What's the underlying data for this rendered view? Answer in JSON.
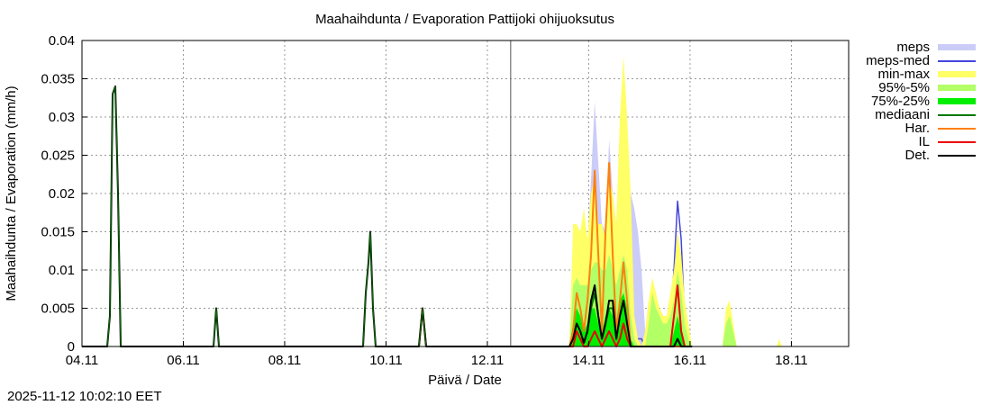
{
  "timestamp": "2025-11-12 10:02:10 EET",
  "chart_data": {
    "type": "area",
    "title": "Maahaihdunta / Evaporation  Pattijoki ohijuoksutus",
    "xlabel": "Päivä / Date",
    "ylabel": "Maahaihdunta / Evaporation (mm/h)",
    "x_unit": "days since 04.11 00:00",
    "xlim": [
      0,
      15.13
    ],
    "ylim": [
      0,
      0.04
    ],
    "grid": true,
    "legend_position": "outside-right",
    "now_marker_x": 8.46,
    "x_ticks": [
      {
        "x": 0,
        "label": "04.11"
      },
      {
        "x": 2,
        "label": "06.11"
      },
      {
        "x": 4,
        "label": "08.11"
      },
      {
        "x": 6,
        "label": "10.11"
      },
      {
        "x": 8,
        "label": "12.11"
      },
      {
        "x": 10,
        "label": "14.11"
      },
      {
        "x": 12,
        "label": "16.11"
      },
      {
        "x": 14,
        "label": "18.11"
      }
    ],
    "y_ticks": [
      {
        "y": 0,
        "label": "0"
      },
      {
        "y": 0.005,
        "label": "0.005"
      },
      {
        "y": 0.01,
        "label": "0.01"
      },
      {
        "y": 0.015,
        "label": "0.015"
      },
      {
        "y": 0.02,
        "label": "0.02"
      },
      {
        "y": 0.025,
        "label": "0.025"
      },
      {
        "y": 0.03,
        "label": "0.03"
      },
      {
        "y": 0.035,
        "label": "0.035"
      },
      {
        "y": 0.04,
        "label": "0.04"
      }
    ],
    "legend": [
      {
        "key": "meps",
        "label": "meps",
        "color": "#ccccf8",
        "kind": "fill"
      },
      {
        "key": "meps_med",
        "label": "meps-med",
        "color": "#4444dd",
        "kind": "line"
      },
      {
        "key": "minmax",
        "label": "min-max",
        "color": "#ffff66",
        "kind": "fill"
      },
      {
        "key": "p95_5",
        "label": "95%-5%",
        "color": "#b3ff66",
        "kind": "fill"
      },
      {
        "key": "p75_25",
        "label": "75%-25%",
        "color": "#00ee00",
        "kind": "fill"
      },
      {
        "key": "mediaani",
        "label": "mediaani",
        "color": "#007700",
        "kind": "line"
      },
      {
        "key": "har",
        "label": "Har.",
        "color": "#ff7f0e",
        "kind": "line"
      },
      {
        "key": "il",
        "label": "IL",
        "color": "#ee0000",
        "kind": "line"
      },
      {
        "key": "det",
        "label": "Det.",
        "color": "#000000",
        "kind": "line"
      }
    ],
    "history": {
      "det": [
        [
          0,
          0
        ],
        [
          0.498,
          0
        ],
        [
          0.551,
          0.004
        ],
        [
          0.604,
          0.033
        ],
        [
          0.658,
          0.034
        ],
        [
          0.711,
          0.02
        ],
        [
          0.764,
          0
        ],
        [
          2.595,
          0
        ],
        [
          2.649,
          0.005
        ],
        [
          2.702,
          0
        ],
        [
          5.547,
          0
        ],
        [
          5.6,
          0.007
        ],
        [
          5.653,
          0.011
        ],
        [
          5.689,
          0.015
        ],
        [
          5.742,
          0.005
        ],
        [
          5.796,
          0
        ],
        [
          6.649,
          0
        ],
        [
          6.72,
          0.005
        ],
        [
          6.791,
          0
        ],
        [
          9.62,
          0
        ]
      ],
      "il": [
        [
          6.649,
          0
        ],
        [
          6.72,
          0.005
        ],
        [
          6.791,
          0
        ]
      ]
    },
    "forecast": {
      "x0": 9.62,
      "dx": 0.0711,
      "meps": [
        0,
        0.015,
        0.013,
        0.012,
        0.018,
        0.013,
        0.022,
        0.032,
        0.024,
        0.016,
        0.015,
        0.027,
        0.02,
        0.016,
        0.027,
        0.034,
        0.025,
        0.02,
        0.018,
        0.015,
        0.01,
        0.002,
        0.006,
        0.007,
        0.005,
        0.005,
        0.004,
        0.003,
        0.006,
        0.008,
        0.012,
        0.01,
        0.004,
        0.001,
        0
      ],
      "minmax": [
        0,
        0.016,
        0.016,
        0.015,
        0.018,
        0.014,
        0.02,
        0.022,
        0.016,
        0.016,
        0.014,
        0.022,
        0.02,
        0.016,
        0.03,
        0.038,
        0.03,
        0.02,
        0.004,
        0.001,
        0,
        0.002,
        0.006,
        0.009,
        0.007,
        0.005,
        0.004,
        0.004,
        0.007,
        0.01,
        0.015,
        0.012,
        0.006,
        0.003,
        0
      ],
      "p95_5": [
        0,
        0.008,
        0.009,
        0.008,
        0.008,
        0.008,
        0.01,
        0.011,
        0.011,
        0.01,
        0.01,
        0.012,
        0.01,
        0.008,
        0.01,
        0.012,
        0.01,
        0.004,
        0.001,
        0,
        0,
        0,
        0.003,
        0.007,
        0.005,
        0.004,
        0.003,
        0.003,
        0.004,
        0.006,
        0.01,
        0.007,
        0.003,
        0.001,
        0
      ],
      "p75_25": [
        0,
        0.003,
        0.005,
        0.004,
        0.002,
        0.003,
        0.005,
        0.005,
        0.003,
        0.002,
        0.004,
        0.005,
        0.004,
        0.003,
        0.006,
        0.007,
        0.005,
        0.001,
        0,
        0,
        0,
        0,
        0,
        0,
        0,
        0,
        0,
        0,
        0,
        0.002,
        0.004,
        0.002,
        0,
        0,
        0
      ],
      "meps_med": [
        0,
        0.002,
        0.003,
        0.002,
        0.001,
        0.002,
        0.005,
        0.007,
        0.004,
        0.001,
        0.003,
        0.005,
        0.005,
        0.002,
        0.004,
        0.006,
        0.004,
        0.002,
        0.001,
        0.001,
        0.001,
        0,
        0.001,
        0.002,
        0.001,
        0.001,
        0.001,
        0.001,
        0.003,
        0.01,
        0.019,
        0.014,
        0.003,
        0,
        0
      ],
      "mediaani": [
        0,
        0.001,
        0.003,
        0.002,
        0.0005,
        0.002,
        0.005,
        0.007,
        0.004,
        0.001,
        0.003,
        0.005,
        0.005,
        0.001,
        0.004,
        0.006,
        0.003,
        0,
        0,
        0,
        0,
        0,
        0,
        0,
        0,
        0,
        0,
        0,
        0,
        0,
        0.001,
        0,
        0,
        0,
        0
      ],
      "har": [
        0,
        0.002,
        0.007,
        0.005,
        0.002,
        0.006,
        0.012,
        0.023,
        0.012,
        0.002,
        0.015,
        0.024,
        0.012,
        0.002,
        0.006,
        0.011,
        0.006,
        0,
        0,
        0,
        0,
        0,
        0,
        0,
        0,
        0,
        0,
        0,
        0,
        0,
        0,
        0,
        0,
        0,
        0
      ],
      "il": [
        0,
        0,
        0.002,
        0.001,
        0,
        0,
        0.001,
        0.002,
        0.001,
        0,
        0.001,
        0.002,
        0.001,
        0,
        0.001,
        0.003,
        0.001,
        0,
        0,
        0,
        0,
        0,
        0,
        0,
        0,
        0,
        0,
        0,
        0,
        0.004,
        0.008,
        0.002,
        0,
        0,
        0
      ],
      "det": [
        0,
        0.001,
        0.003,
        0.002,
        0.0005,
        0.002,
        0.006,
        0.008,
        0.004,
        0.001,
        0.003,
        0.006,
        0.006,
        0.001,
        0.004,
        0.006,
        0.003,
        0,
        0,
        0,
        0,
        0,
        0,
        0,
        0,
        0,
        0,
        0,
        0,
        0,
        0.001,
        0,
        0,
        0,
        0
      ]
    },
    "extra": {
      "minmax": [
        [
          12.64,
          0
        ],
        [
          12.71,
          0.005
        ],
        [
          12.78,
          0.006
        ],
        [
          12.85,
          0.003
        ],
        [
          12.92,
          0
        ],
        [
          13.71,
          0
        ],
        [
          13.76,
          0.001
        ],
        [
          13.81,
          0
        ]
      ],
      "p95_5": [
        [
          12.64,
          0
        ],
        [
          12.71,
          0.003
        ],
        [
          12.78,
          0.004
        ],
        [
          12.85,
          0.002
        ],
        [
          12.92,
          0
        ]
      ]
    }
  }
}
